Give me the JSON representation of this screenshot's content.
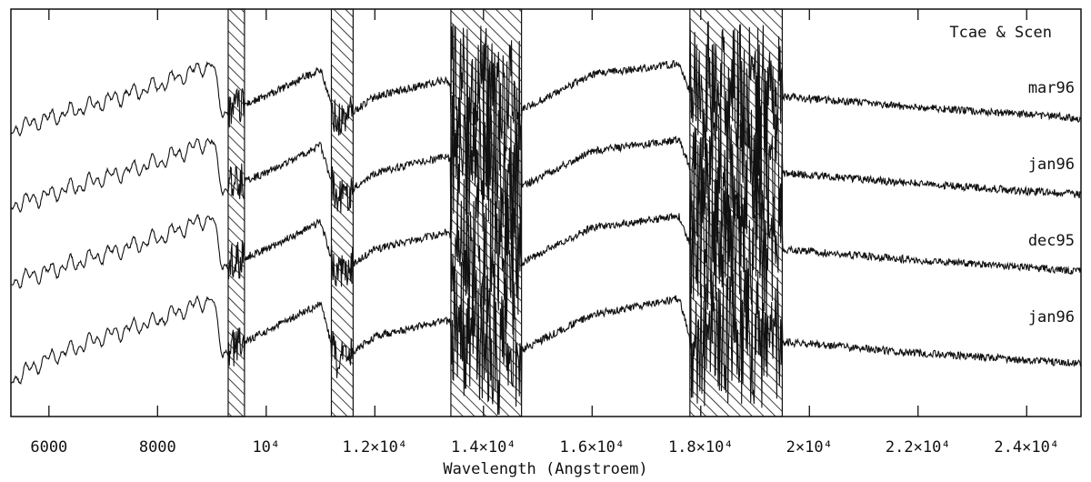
{
  "chart_data": {
    "type": "line",
    "title": "Tcae & Scen",
    "xlabel": "Wavelength (Angstroem)",
    "ylabel": "",
    "xlim": [
      5300,
      25000
    ],
    "x_ticks": [
      {
        "value": 6000,
        "label": "6000"
      },
      {
        "value": 8000,
        "label": "8000"
      },
      {
        "value": 10000,
        "label": "10⁴"
      },
      {
        "value": 12000,
        "label": "1.2×10⁴"
      },
      {
        "value": 14000,
        "label": "1.4×10⁴"
      },
      {
        "value": 16000,
        "label": "1.6×10⁴"
      },
      {
        "value": 18000,
        "label": "1.8×10⁴"
      },
      {
        "value": 20000,
        "label": "2×10⁴"
      },
      {
        "value": 22000,
        "label": "2.2×10⁴"
      },
      {
        "value": 24000,
        "label": "2.4×10⁴"
      }
    ],
    "excluded_bands": [
      [
        9300,
        9600
      ],
      [
        11200,
        11600
      ],
      [
        13400,
        14700
      ],
      [
        17800,
        19500
      ]
    ],
    "grid": false,
    "legend": "none",
    "series": [
      {
        "name": "mar96",
        "offset": 3,
        "x": [
          5300,
          6000,
          7000,
          8000,
          9000,
          9200,
          10000,
          11000,
          11300,
          12000,
          13300,
          14600,
          16000,
          17600,
          17800,
          19500,
          22000,
          25000
        ],
        "y": [
          0.4,
          0.5,
          0.65,
          0.8,
          1.0,
          0.55,
          0.7,
          0.95,
          0.45,
          0.7,
          0.85,
          0.55,
          0.9,
          1.0,
          0.75,
          0.7,
          0.6,
          0.5
        ]
      },
      {
        "name": "jan96",
        "offset": 2,
        "x": [
          5300,
          6000,
          7000,
          8000,
          9000,
          9200,
          10000,
          11000,
          11300,
          12000,
          13300,
          14600,
          16000,
          17600,
          17800,
          19500,
          22000,
          25000
        ],
        "y": [
          0.4,
          0.5,
          0.65,
          0.8,
          1.0,
          0.55,
          0.7,
          0.95,
          0.45,
          0.7,
          0.85,
          0.55,
          0.9,
          1.0,
          0.75,
          0.7,
          0.6,
          0.5
        ]
      },
      {
        "name": "dec95",
        "offset": 1,
        "x": [
          5300,
          6000,
          7000,
          8000,
          9000,
          9200,
          10000,
          11000,
          11300,
          12000,
          13300,
          14600,
          16000,
          17600,
          17800,
          19500,
          22000,
          25000
        ],
        "y": [
          0.4,
          0.5,
          0.65,
          0.8,
          1.0,
          0.55,
          0.7,
          0.95,
          0.45,
          0.7,
          0.85,
          0.55,
          0.9,
          1.0,
          0.75,
          0.7,
          0.6,
          0.5
        ]
      },
      {
        "name": "jan96",
        "offset": 0,
        "x": [
          5300,
          6000,
          7000,
          8000,
          9000,
          9200,
          10000,
          11000,
          11300,
          12000,
          13300,
          14600,
          16000,
          17600,
          17800,
          19500,
          22000,
          25000
        ],
        "y": [
          0.2,
          0.4,
          0.6,
          0.75,
          0.95,
          0.45,
          0.65,
          0.9,
          0.35,
          0.6,
          0.75,
          0.45,
          0.8,
          0.95,
          0.6,
          0.55,
          0.45,
          0.35
        ]
      }
    ]
  }
}
